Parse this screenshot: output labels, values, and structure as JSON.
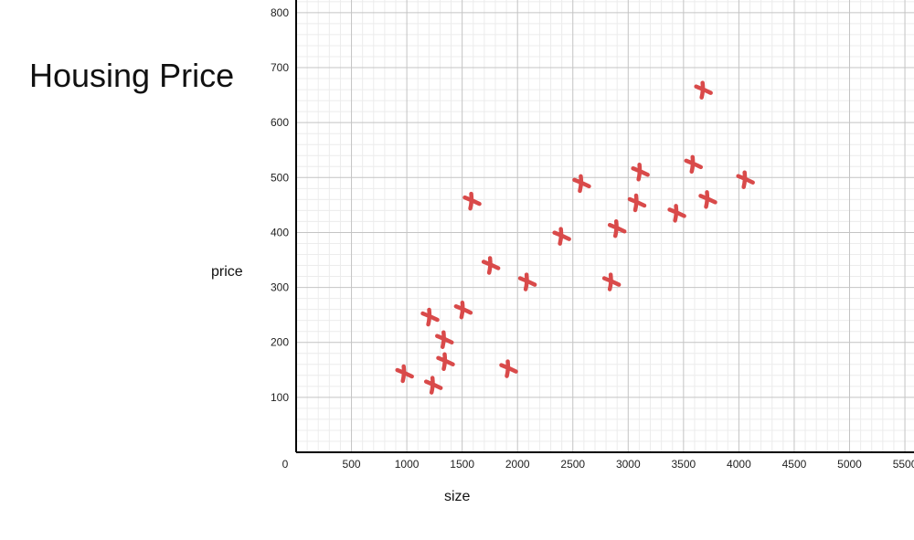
{
  "chart_data": {
    "type": "scatter",
    "title": "Housing Price",
    "xlabel": "size",
    "ylabel": "price",
    "xlim": [
      0,
      5500
    ],
    "ylim": [
      0,
      800
    ],
    "x_ticks": [
      "0",
      "500",
      "1000",
      "1500",
      "2000",
      "2500",
      "3000",
      "3500",
      "4000",
      "4500",
      "5000",
      "5500"
    ],
    "y_ticks": [
      "100",
      "200",
      "300",
      "400",
      "500",
      "600",
      "700",
      "800"
    ],
    "grid": true,
    "marker": "x",
    "marker_color": "#d94a4a",
    "points": [
      {
        "x": 980,
        "y": 143
      },
      {
        "x": 1240,
        "y": 122
      },
      {
        "x": 1210,
        "y": 246
      },
      {
        "x": 1340,
        "y": 205
      },
      {
        "x": 1350,
        "y": 165
      },
      {
        "x": 1510,
        "y": 259
      },
      {
        "x": 1590,
        "y": 457
      },
      {
        "x": 1760,
        "y": 340
      },
      {
        "x": 1920,
        "y": 152
      },
      {
        "x": 2090,
        "y": 310
      },
      {
        "x": 2400,
        "y": 393
      },
      {
        "x": 2580,
        "y": 489
      },
      {
        "x": 2850,
        "y": 310
      },
      {
        "x": 2900,
        "y": 407
      },
      {
        "x": 3080,
        "y": 454
      },
      {
        "x": 3110,
        "y": 510
      },
      {
        "x": 3440,
        "y": 435
      },
      {
        "x": 3590,
        "y": 524
      },
      {
        "x": 3680,
        "y": 659
      },
      {
        "x": 3720,
        "y": 460
      },
      {
        "x": 4060,
        "y": 496
      }
    ]
  }
}
